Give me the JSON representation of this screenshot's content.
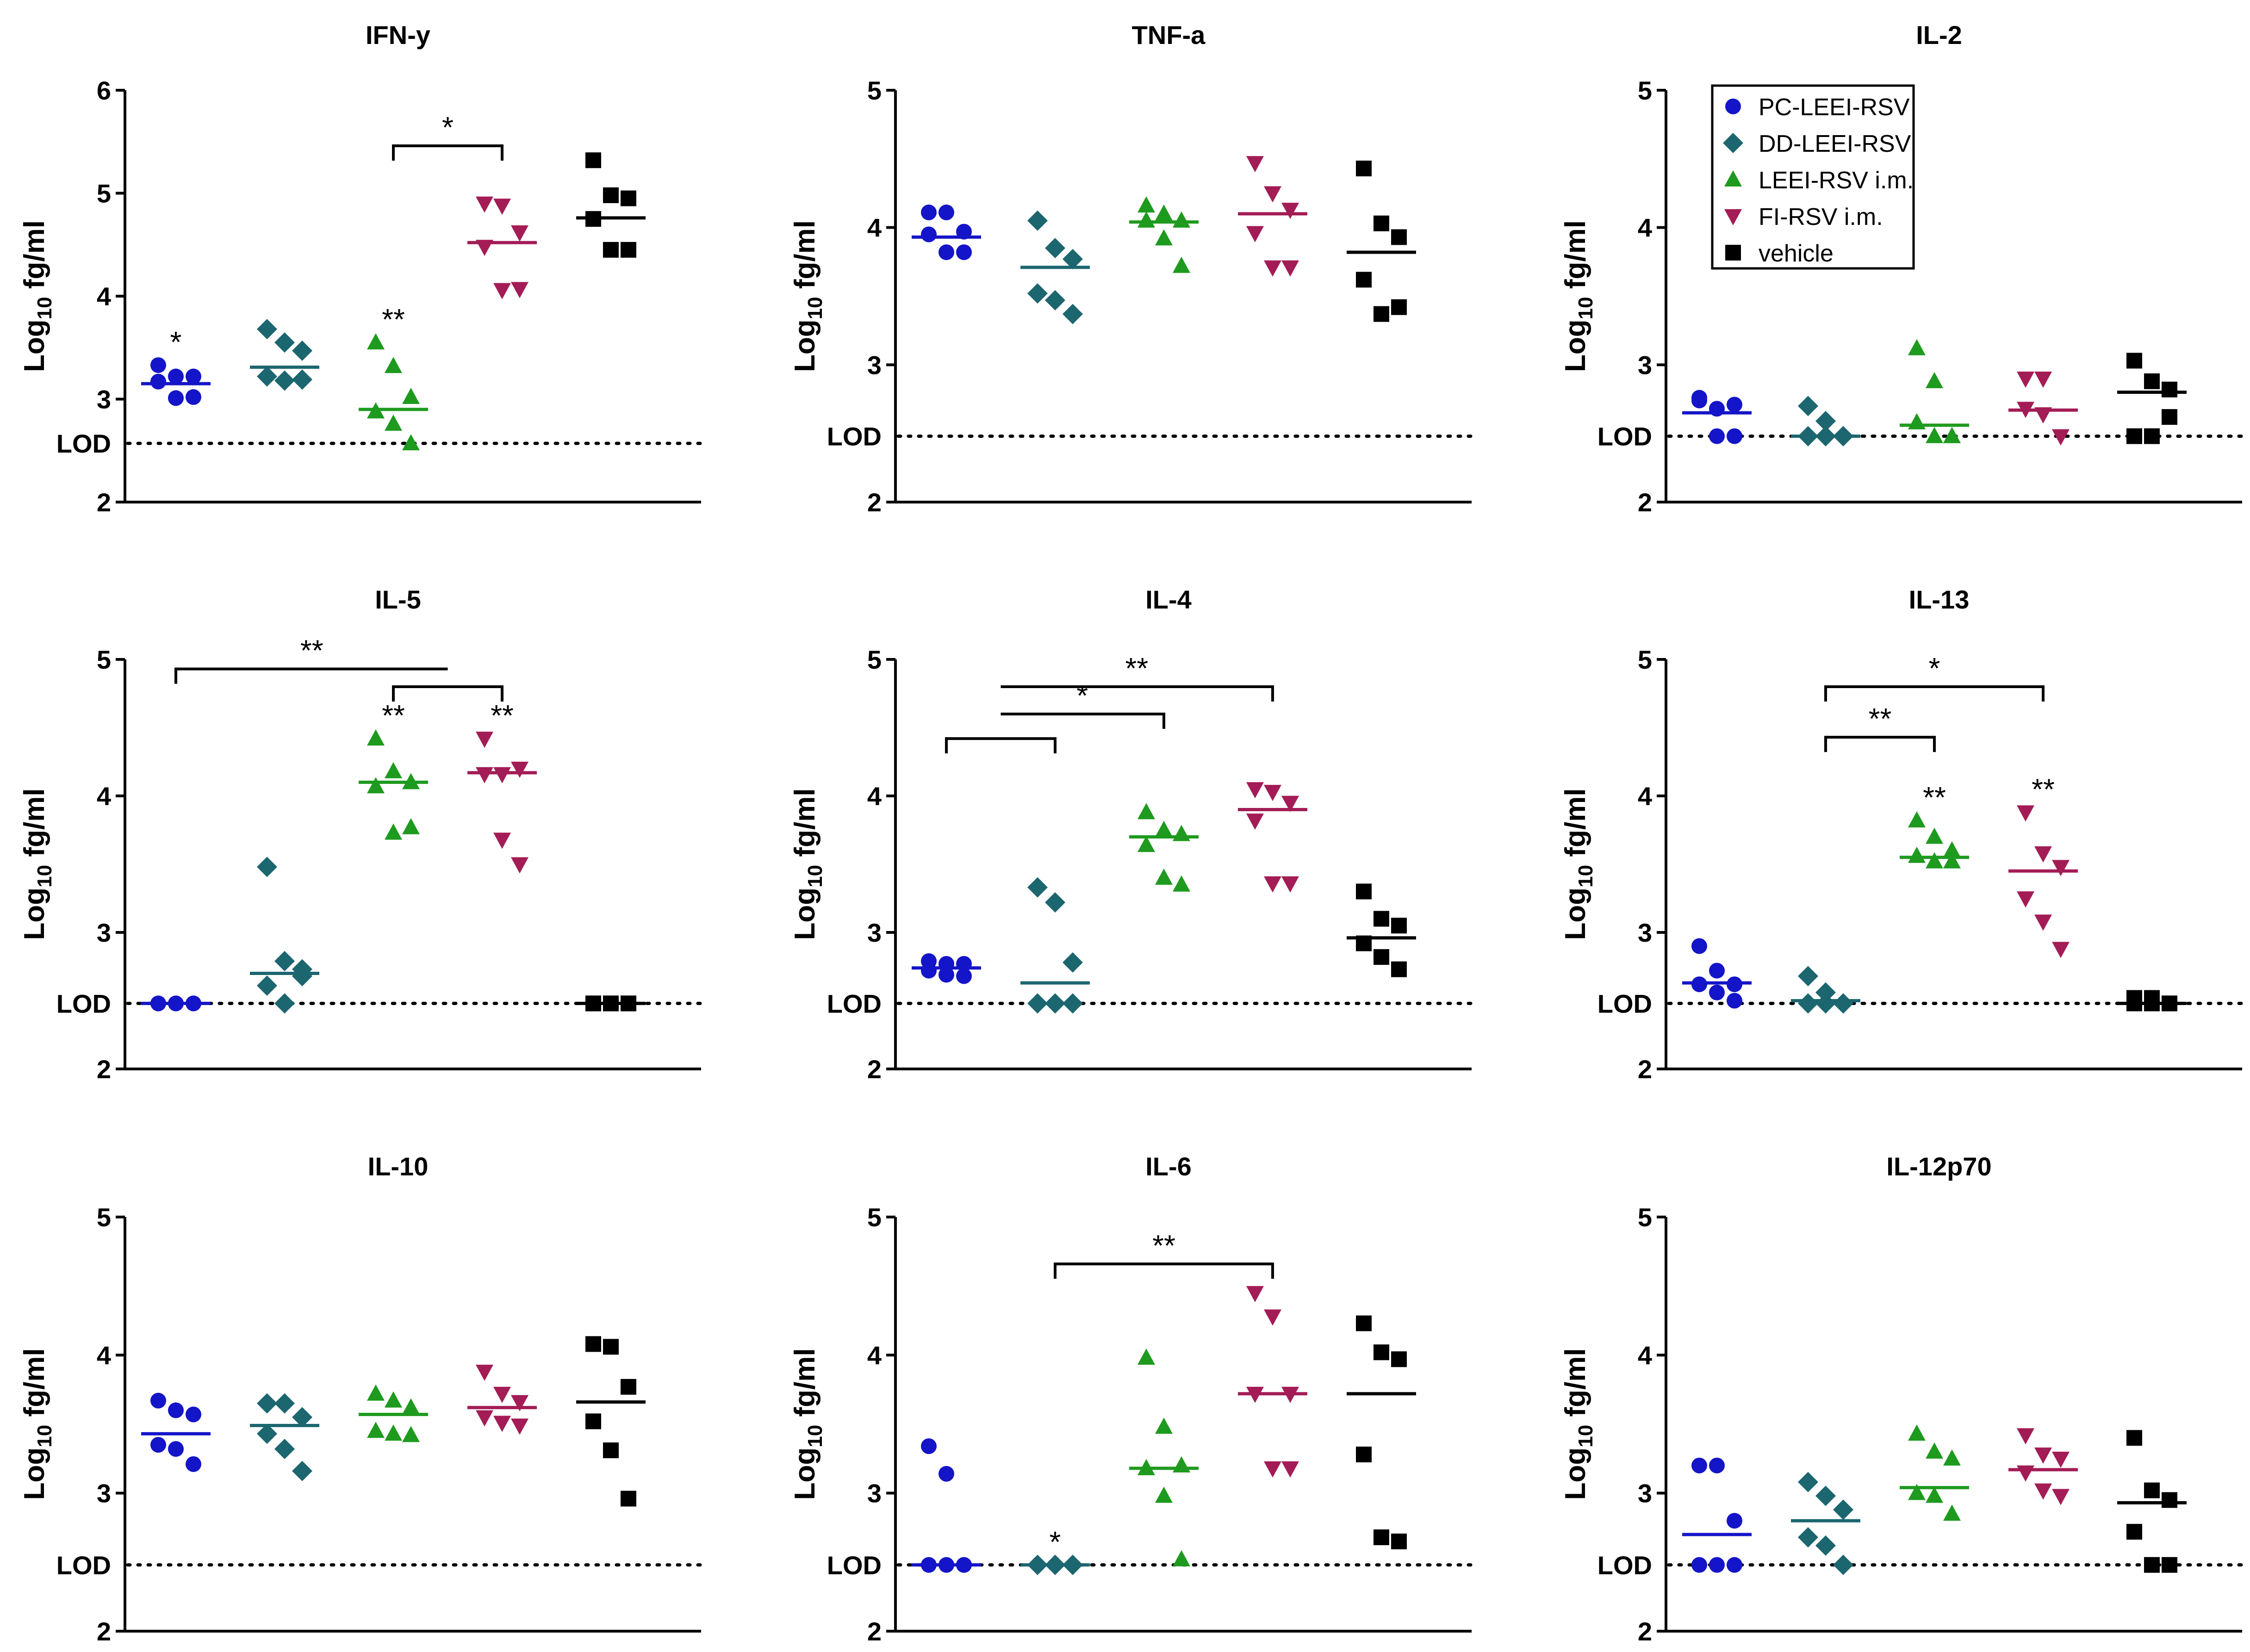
{
  "figure": {
    "ylabel_prefix": "Log",
    "ylabel_sub": "10",
    "ylabel_suffix": " fg/ml",
    "lod_label": "LOD"
  },
  "legend": {
    "entries": [
      {
        "label": "PC-LEEI-RSV",
        "color": "#1414c8",
        "marker": "circle"
      },
      {
        "label": "DD-LEEI-RSV",
        "color": "#1c6670",
        "marker": "diamond"
      },
      {
        "label": "LEEI-RSV i.m.",
        "color": "#1e9a1e",
        "marker": "triangle-up"
      },
      {
        "label": "FI-RSV i.m.",
        "color": "#a31c55",
        "marker": "triangle-down"
      },
      {
        "label": "vehicle",
        "color": "#000000",
        "marker": "square"
      }
    ]
  },
  "chart_data": [
    {
      "type": "scatter",
      "title": "IFN-y",
      "ylabel": "Log10 fg/ml",
      "ylim": [
        2,
        6
      ],
      "yticks": [
        2,
        3,
        4,
        5,
        6
      ],
      "lod": 2.57,
      "series": [
        {
          "name": "PC-LEEI-RSV",
          "values": [
            3.33,
            3.22,
            3.22,
            3.17,
            3.01,
            3.02
          ],
          "median": 3.15,
          "annotation": "*"
        },
        {
          "name": "DD-LEEI-RSV",
          "values": [
            3.68,
            3.55,
            3.47,
            3.22,
            3.18,
            3.19
          ],
          "median": 3.31
        },
        {
          "name": "LEEI-RSV i.m.",
          "values": [
            3.55,
            3.32,
            3.02,
            2.88,
            2.76,
            2.57
          ],
          "median": 2.9,
          "annotation": "**"
        },
        {
          "name": "FI-RSV i.m.",
          "values": [
            4.9,
            4.88,
            4.62,
            4.48,
            4.06,
            4.07
          ],
          "median": 4.52
        },
        {
          "name": "vehicle",
          "values": [
            5.32,
            4.98,
            4.95,
            4.75,
            4.45,
            4.45
          ],
          "median": 4.76
        }
      ],
      "brackets": [
        {
          "from": 2,
          "to": 3,
          "level": 5.46,
          "label": "*"
        }
      ]
    },
    {
      "type": "scatter",
      "title": "TNF-a",
      "ylabel": "Log10 fg/ml",
      "ylim": [
        2,
        5
      ],
      "yticks": [
        2,
        3,
        4,
        5
      ],
      "lod": 2.48,
      "series": [
        {
          "name": "PC-LEEI-RSV",
          "values": [
            4.11,
            4.11,
            3.97,
            3.95,
            3.82,
            3.82
          ],
          "median": 3.93
        },
        {
          "name": "DD-LEEI-RSV",
          "values": [
            4.05,
            3.85,
            3.77,
            3.52,
            3.47,
            3.37
          ],
          "median": 3.71
        },
        {
          "name": "LEEI-RSV i.m.",
          "values": [
            4.16,
            4.1,
            4.05,
            4.05,
            3.92,
            3.72
          ],
          "median": 4.04
        },
        {
          "name": "FI-RSV i.m.",
          "values": [
            4.47,
            4.25,
            4.13,
            3.96,
            3.71,
            3.71
          ],
          "median": 4.1
        },
        {
          "name": "vehicle",
          "values": [
            4.43,
            4.03,
            3.93,
            3.62,
            3.37,
            3.42
          ],
          "median": 3.82
        }
      ],
      "brackets": []
    },
    {
      "type": "scatter",
      "title": "IL-2",
      "ylabel": "Log10 fg/ml",
      "ylim": [
        2,
        5
      ],
      "yticks": [
        2,
        3,
        4,
        5
      ],
      "lod": 2.48,
      "series": [
        {
          "name": "PC-LEEI-RSV",
          "values": [
            2.74,
            2.68,
            2.71,
            2.76,
            2.48,
            2.48
          ],
          "median": 2.65
        },
        {
          "name": "DD-LEEI-RSV",
          "values": [
            2.7,
            2.59,
            2.48,
            2.48,
            2.48,
            2.48
          ],
          "median": 2.48
        },
        {
          "name": "LEEI-RSV i.m.",
          "values": [
            3.12,
            2.88,
            2.48,
            2.58,
            2.48,
            2.48
          ],
          "median": 2.56
        },
        {
          "name": "FI-RSV i.m.",
          "values": [
            2.9,
            2.9,
            2.48,
            2.68,
            2.64,
            2.48
          ],
          "median": 2.67
        },
        {
          "name": "vehicle",
          "values": [
            3.03,
            2.88,
            2.82,
            2.48,
            2.48,
            2.62
          ],
          "median": 2.8
        }
      ],
      "brackets": []
    },
    {
      "type": "scatter",
      "title": "IL-5",
      "ylabel": "Log10 fg/ml",
      "ylim": [
        2,
        5
      ],
      "yticks": [
        2,
        3,
        4,
        5
      ],
      "lod": 2.48,
      "series": [
        {
          "name": "PC-LEEI-RSV",
          "values": [
            2.48,
            2.48,
            2.48,
            2.48,
            2.48,
            2.48
          ],
          "median": 2.48
        },
        {
          "name": "DD-LEEI-RSV",
          "values": [
            3.48,
            2.79,
            2.73,
            2.61,
            2.48,
            2.68
          ],
          "median": 2.7
        },
        {
          "name": "LEEI-RSV i.m.",
          "values": [
            4.42,
            4.18,
            4.1,
            4.07,
            3.73,
            3.77
          ],
          "median": 4.1,
          "annotation": "**"
        },
        {
          "name": "FI-RSV i.m.",
          "values": [
            4.42,
            4.16,
            4.2,
            4.16,
            3.68,
            3.5
          ],
          "median": 4.17,
          "annotation": "**"
        },
        {
          "name": "vehicle",
          "values": [
            2.48,
            2.48,
            2.48,
            2.48,
            2.48,
            2.48
          ],
          "median": 2.48
        }
      ],
      "brackets": [
        {
          "from": 2,
          "to": 3,
          "level": 4.8,
          "label": ""
        },
        {
          "from": 0,
          "to": 2.5,
          "level": 4.93,
          "label": "**"
        }
      ]
    },
    {
      "type": "scatter",
      "title": "IL-4",
      "ylabel": "Log10 fg/ml",
      "ylim": [
        2,
        5
      ],
      "yticks": [
        2,
        3,
        4,
        5
      ],
      "lod": 2.48,
      "series": [
        {
          "name": "PC-LEEI-RSV",
          "values": [
            2.79,
            2.77,
            2.77,
            2.72,
            2.69,
            2.68
          ],
          "median": 2.74
        },
        {
          "name": "DD-LEEI-RSV",
          "values": [
            3.33,
            3.22,
            2.78,
            2.48,
            2.48,
            2.48
          ],
          "median": 2.63
        },
        {
          "name": "LEEI-RSV i.m.",
          "values": [
            3.88,
            3.75,
            3.72,
            3.64,
            3.4,
            3.35
          ],
          "median": 3.7
        },
        {
          "name": "FI-RSV i.m.",
          "values": [
            4.05,
            4.03,
            3.95,
            3.82,
            3.36,
            3.36
          ],
          "median": 3.9
        },
        {
          "name": "vehicle",
          "values": [
            3.3,
            3.1,
            3.05,
            2.92,
            2.82,
            2.73
          ],
          "median": 2.96
        }
      ],
      "brackets": [
        {
          "from": 0,
          "to": 1,
          "level": 4.42,
          "label": ""
        },
        {
          "from": 0.5,
          "to": 2,
          "level": 4.6,
          "label": "*"
        },
        {
          "from": 0.5,
          "to": 3,
          "level": 4.8,
          "label": "**"
        }
      ]
    },
    {
      "type": "scatter",
      "title": "IL-13",
      "ylabel": "Log10 fg/ml",
      "ylim": [
        2,
        5
      ],
      "yticks": [
        2,
        3,
        4,
        5
      ],
      "lod": 2.48,
      "series": [
        {
          "name": "PC-LEEI-RSV",
          "values": [
            2.9,
            2.72,
            2.62,
            2.62,
            2.56,
            2.5
          ],
          "median": 2.63
        },
        {
          "name": "DD-LEEI-RSV",
          "values": [
            2.68,
            2.56,
            2.48,
            2.48,
            2.48,
            2.48
          ],
          "median": 2.5
        },
        {
          "name": "LEEI-RSV i.m.",
          "values": [
            3.82,
            3.7,
            3.6,
            3.56,
            3.52,
            3.52
          ],
          "median": 3.55,
          "annotation": "**"
        },
        {
          "name": "FI-RSV i.m.",
          "values": [
            3.88,
            3.58,
            3.48,
            3.25,
            3.08,
            2.88
          ],
          "median": 3.45,
          "annotation": "**"
        },
        {
          "name": "vehicle",
          "values": [
            2.52,
            2.52,
            2.48,
            2.48,
            2.48,
            2.48
          ],
          "median": 2.48
        }
      ],
      "brackets": [
        {
          "from": 1,
          "to": 2,
          "level": 4.43,
          "label": "**"
        },
        {
          "from": 1,
          "to": 3,
          "level": 4.8,
          "label": "*"
        }
      ]
    },
    {
      "type": "scatter",
      "title": "IL-10",
      "ylabel": "Log10 fg/ml",
      "ylim": [
        2,
        5
      ],
      "yticks": [
        2,
        3,
        4,
        5
      ],
      "lod": 2.48,
      "series": [
        {
          "name": "PC-LEEI-RSV",
          "values": [
            3.67,
            3.6,
            3.57,
            3.35,
            3.32,
            3.21
          ],
          "median": 3.43
        },
        {
          "name": "DD-LEEI-RSV",
          "values": [
            3.65,
            3.65,
            3.55,
            3.43,
            3.32,
            3.16
          ],
          "median": 3.49
        },
        {
          "name": "LEEI-RSV i.m.",
          "values": [
            3.72,
            3.67,
            3.62,
            3.45,
            3.43,
            3.42
          ],
          "median": 3.57
        },
        {
          "name": "FI-RSV i.m.",
          "values": [
            3.88,
            3.72,
            3.66,
            3.55,
            3.51,
            3.49
          ],
          "median": 3.62
        },
        {
          "name": "vehicle",
          "values": [
            4.08,
            4.06,
            3.77,
            3.52,
            3.31,
            2.96
          ],
          "median": 3.66
        }
      ],
      "brackets": []
    },
    {
      "type": "scatter",
      "title": "IL-6",
      "ylabel": "Log10 fg/ml",
      "ylim": [
        2,
        5
      ],
      "yticks": [
        2,
        3,
        4,
        5
      ],
      "lod": 2.48,
      "series": [
        {
          "name": "PC-LEEI-RSV",
          "values": [
            3.34,
            3.14,
            2.48,
            2.48,
            2.48,
            2.48
          ],
          "median": 2.48
        },
        {
          "name": "DD-LEEI-RSV",
          "values": [
            2.48,
            2.48,
            2.48,
            2.48,
            2.48,
            2.48
          ],
          "median": 2.48,
          "annotation": "*"
        },
        {
          "name": "LEEI-RSV i.m.",
          "values": [
            3.98,
            3.48,
            3.2,
            3.18,
            2.98,
            2.52
          ],
          "median": 3.18
        },
        {
          "name": "FI-RSV i.m.",
          "values": [
            4.45,
            4.28,
            3.72,
            3.72,
            3.18,
            3.18
          ],
          "median": 3.72
        },
        {
          "name": "vehicle",
          "values": [
            4.23,
            4.02,
            3.97,
            3.28,
            2.68,
            2.65
          ],
          "median": 3.72
        }
      ],
      "brackets": [
        {
          "from": 1,
          "to": 3,
          "level": 4.66,
          "label": "**"
        }
      ]
    },
    {
      "type": "scatter",
      "title": "IL-12p70",
      "ylabel": "Log10 fg/ml",
      "ylim": [
        2,
        5
      ],
      "yticks": [
        2,
        3,
        4,
        5
      ],
      "lod": 2.48,
      "series": [
        {
          "name": "PC-LEEI-RSV",
          "values": [
            3.2,
            3.2,
            2.8,
            2.48,
            2.48,
            2.48
          ],
          "median": 2.7
        },
        {
          "name": "DD-LEEI-RSV",
          "values": [
            3.08,
            2.98,
            2.88,
            2.68,
            2.62,
            2.48
          ],
          "median": 2.8
        },
        {
          "name": "LEEI-RSV i.m.",
          "values": [
            3.43,
            3.3,
            3.25,
            3.0,
            2.98,
            2.85
          ],
          "median": 3.04
        },
        {
          "name": "FI-RSV i.m.",
          "values": [
            3.42,
            3.28,
            3.25,
            3.15,
            3.02,
            2.98
          ],
          "median": 3.17
        },
        {
          "name": "vehicle",
          "values": [
            3.4,
            3.02,
            2.95,
            2.72,
            2.48,
            2.48
          ],
          "median": 2.93
        }
      ],
      "brackets": []
    }
  ]
}
